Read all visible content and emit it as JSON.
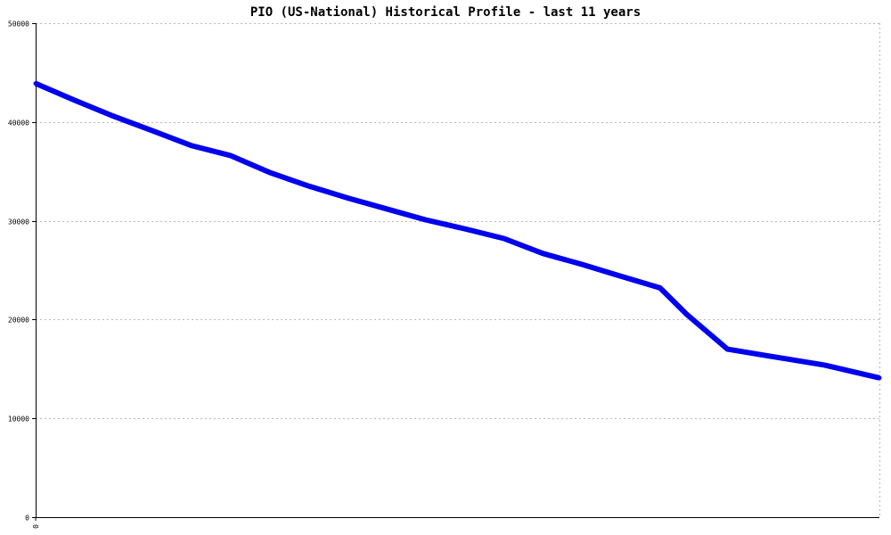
{
  "chart_data": {
    "type": "line",
    "title": "PIO (US-National) Historical Profile - last 11 years",
    "xlabel": "",
    "ylabel": "",
    "ylim": [
      0,
      50000
    ],
    "yticks": [
      0,
      10000,
      20000,
      30000,
      40000,
      50000
    ],
    "ytick_labels": [
      "0",
      "10000",
      "20000",
      "30000",
      "40000",
      "50000"
    ],
    "xticks": [
      0
    ],
    "xtick_labels": [
      "0"
    ],
    "xlim": [
      0,
      1
    ],
    "grid": true,
    "series": [
      {
        "color": "#0000ee",
        "x": [
          0.0,
          0.046,
          0.092,
          0.139,
          0.185,
          0.231,
          0.277,
          0.324,
          0.37,
          0.416,
          0.462,
          0.508,
          0.555,
          0.601,
          0.647,
          0.693,
          0.74,
          0.772,
          0.82,
          0.87,
          0.935,
          1.0
        ],
        "y": [
          43900,
          42200,
          40600,
          39100,
          37600,
          36600,
          34900,
          33500,
          32300,
          31200,
          30100,
          29200,
          28200,
          26700,
          25600,
          24400,
          23200,
          20500,
          17000,
          16300,
          15400,
          14100
        ]
      }
    ]
  }
}
